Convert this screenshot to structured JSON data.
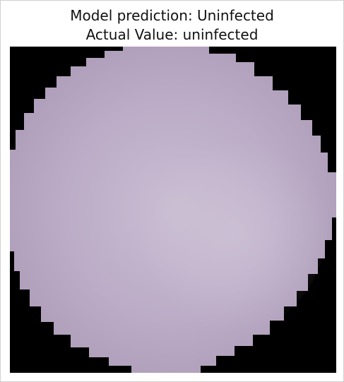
{
  "figure": {
    "title_line_1": "Model prediction: Uninfected",
    "title_line_2": "Actual Value: uninfected"
  },
  "image": {
    "subject": "uninfected-red-blood-cell",
    "background_color": "#000000",
    "cell_fill_color": "#b9a8c3",
    "cell_center_color": "#c8bcd0",
    "cell_edge_color": "#a999b4"
  }
}
